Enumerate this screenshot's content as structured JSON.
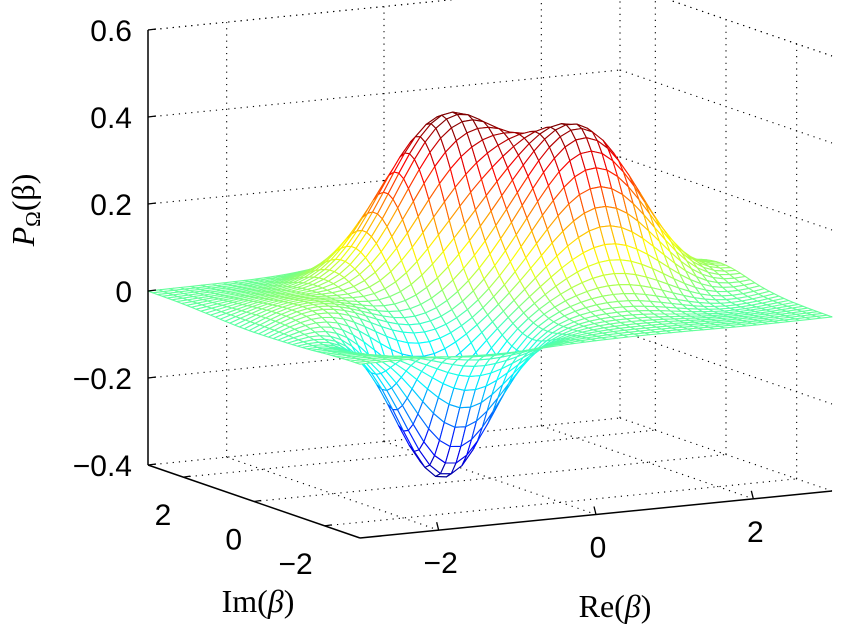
{
  "chart_data": {
    "type": "surface",
    "title": "",
    "xlabel": "Re(β)",
    "ylabel": "Im(β)",
    "zlabel": "PΩ(β)",
    "xlabel_parts": {
      "prefix": "Re(",
      "var": "β",
      "suffix": ")"
    },
    "ylabel_parts": {
      "prefix": "Im(",
      "var": "β",
      "suffix": ")"
    },
    "zlabel_parts": {
      "var": "P",
      "sub": "Ω",
      "arg": "(β)"
    },
    "xlim": [
      -3,
      3
    ],
    "ylim": [
      -3,
      3
    ],
    "zlim": [
      -0.4,
      0.6
    ],
    "x_ticks": [
      -2,
      0,
      2
    ],
    "y_ticks": [
      2,
      0,
      -2
    ],
    "z_ticks": [
      0.6,
      0.4,
      0.2,
      0,
      -0.2,
      -0.4
    ],
    "x_tick_labels": [
      "−2",
      "0",
      "2"
    ],
    "y_tick_labels": [
      "2",
      "0",
      "−2"
    ],
    "z_tick_labels": [
      "0.6",
      "0.4",
      "0.2",
      "0",
      "−0.2",
      "−0.4"
    ],
    "grid": true,
    "colormap": "jet",
    "features": [
      {
        "kind": "peak",
        "x": 0.0,
        "y": 1.4,
        "z": 0.38
      },
      {
        "kind": "peak",
        "x": 1.35,
        "y": 0.2,
        "z": 0.35
      },
      {
        "kind": "trough",
        "x": -1.3,
        "y": -1.5,
        "z": -0.33
      }
    ]
  }
}
